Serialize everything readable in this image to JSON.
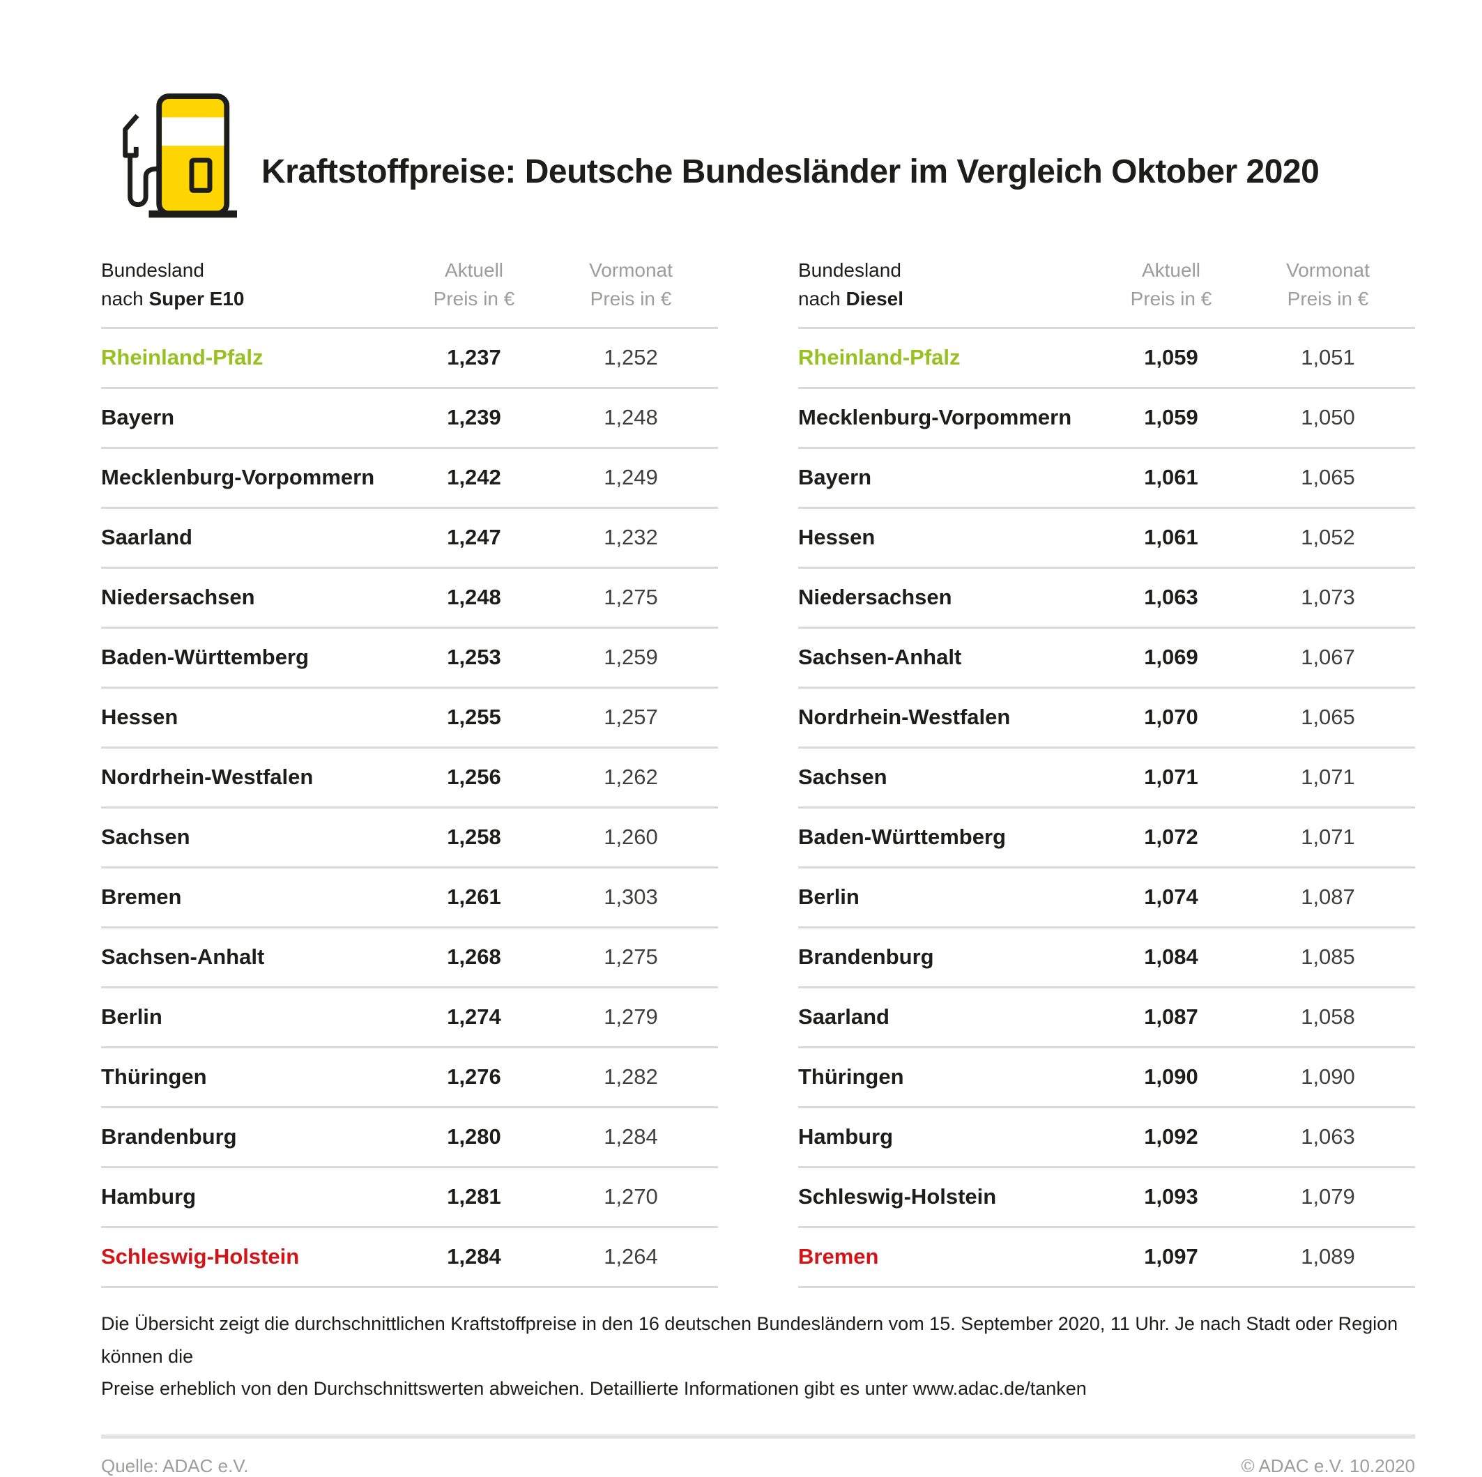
{
  "title": "Kraftstoffpreise: Deutsche Bundesländer im Vergleich Oktober 2020",
  "icon": "fuel-pump-icon",
  "colors": {
    "accent_yellow": "#ffd500",
    "outline_black": "#1d1d1b",
    "highlight_green": "#96c11e",
    "highlight_red": "#d51317",
    "header_gray": "#9d9d9c",
    "divider_gray": "#d9d9d9"
  },
  "tables": [
    {
      "header": {
        "col1_line1": "Bundesland",
        "col1_line2_prefix": "nach ",
        "col1_fuel": "Super E10",
        "col2_line1": "Aktuell",
        "col2_line2": "Preis in €",
        "col3_line1": "Vormonat",
        "col3_line2": "Preis in €"
      },
      "rows": [
        {
          "name": "Rheinland-Pfalz",
          "aktuell": "1,237",
          "vormonat": "1,252",
          "color": "green"
        },
        {
          "name": "Bayern",
          "aktuell": "1,239",
          "vormonat": "1,248",
          "color": "default"
        },
        {
          "name": "Mecklenburg-Vorpommern",
          "aktuell": "1,242",
          "vormonat": "1,249",
          "color": "default"
        },
        {
          "name": "Saarland",
          "aktuell": "1,247",
          "vormonat": "1,232",
          "color": "default"
        },
        {
          "name": "Niedersachsen",
          "aktuell": "1,248",
          "vormonat": "1,275",
          "color": "default"
        },
        {
          "name": "Baden-Württemberg",
          "aktuell": "1,253",
          "vormonat": "1,259",
          "color": "default"
        },
        {
          "name": "Hessen",
          "aktuell": "1,255",
          "vormonat": "1,257",
          "color": "default"
        },
        {
          "name": "Nordrhein-Westfalen",
          "aktuell": "1,256",
          "vormonat": "1,262",
          "color": "default"
        },
        {
          "name": "Sachsen",
          "aktuell": "1,258",
          "vormonat": "1,260",
          "color": "default"
        },
        {
          "name": "Bremen",
          "aktuell": "1,261",
          "vormonat": "1,303",
          "color": "default"
        },
        {
          "name": "Sachsen-Anhalt",
          "aktuell": "1,268",
          "vormonat": "1,275",
          "color": "default"
        },
        {
          "name": "Berlin",
          "aktuell": "1,274",
          "vormonat": "1,279",
          "color": "default"
        },
        {
          "name": "Thüringen",
          "aktuell": "1,276",
          "vormonat": "1,282",
          "color": "default"
        },
        {
          "name": "Brandenburg",
          "aktuell": "1,280",
          "vormonat": "1,284",
          "color": "default"
        },
        {
          "name": "Hamburg",
          "aktuell": "1,281",
          "vormonat": "1,270",
          "color": "default"
        },
        {
          "name": "Schleswig-Holstein",
          "aktuell": "1,284",
          "vormonat": "1,264",
          "color": "red"
        }
      ]
    },
    {
      "header": {
        "col1_line1": "Bundesland",
        "col1_line2_prefix": "nach ",
        "col1_fuel": "Diesel",
        "col2_line1": "Aktuell",
        "col2_line2": "Preis in €",
        "col3_line1": "Vormonat",
        "col3_line2": "Preis in €"
      },
      "rows": [
        {
          "name": "Rheinland-Pfalz",
          "aktuell": "1,059",
          "vormonat": "1,051",
          "color": "green"
        },
        {
          "name": "Mecklenburg-Vorpommern",
          "aktuell": "1,059",
          "vormonat": "1,050",
          "color": "default"
        },
        {
          "name": "Bayern",
          "aktuell": "1,061",
          "vormonat": "1,065",
          "color": "default"
        },
        {
          "name": "Hessen",
          "aktuell": "1,061",
          "vormonat": "1,052",
          "color": "default"
        },
        {
          "name": "Niedersachsen",
          "aktuell": "1,063",
          "vormonat": "1,073",
          "color": "default"
        },
        {
          "name": "Sachsen-Anhalt",
          "aktuell": "1,069",
          "vormonat": "1,067",
          "color": "default"
        },
        {
          "name": "Nordrhein-Westfalen",
          "aktuell": "1,070",
          "vormonat": "1,065",
          "color": "default"
        },
        {
          "name": "Sachsen",
          "aktuell": "1,071",
          "vormonat": "1,071",
          "color": "default"
        },
        {
          "name": "Baden-Württemberg",
          "aktuell": "1,072",
          "vormonat": "1,071",
          "color": "default"
        },
        {
          "name": "Berlin",
          "aktuell": "1,074",
          "vormonat": "1,087",
          "color": "default"
        },
        {
          "name": "Brandenburg",
          "aktuell": "1,084",
          "vormonat": "1,085",
          "color": "default"
        },
        {
          "name": "Saarland",
          "aktuell": "1,087",
          "vormonat": "1,058",
          "color": "default"
        },
        {
          "name": "Thüringen",
          "aktuell": "1,090",
          "vormonat": "1,090",
          "color": "default"
        },
        {
          "name": "Hamburg",
          "aktuell": "1,092",
          "vormonat": "1,063",
          "color": "default"
        },
        {
          "name": "Schleswig-Holstein",
          "aktuell": "1,093",
          "vormonat": "1,079",
          "color": "default"
        },
        {
          "name": "Bremen",
          "aktuell": "1,097",
          "vormonat": "1,089",
          "color": "red"
        }
      ]
    }
  ],
  "chart_data": [
    {
      "type": "table",
      "title": "Bundesland nach Super E10",
      "columns": [
        "Bundesland",
        "Aktuell Preis in €",
        "Vormonat Preis in €"
      ],
      "rows": [
        [
          "Rheinland-Pfalz",
          1.237,
          1.252
        ],
        [
          "Bayern",
          1.239,
          1.248
        ],
        [
          "Mecklenburg-Vorpommern",
          1.242,
          1.249
        ],
        [
          "Saarland",
          1.247,
          1.232
        ],
        [
          "Niedersachsen",
          1.248,
          1.275
        ],
        [
          "Baden-Württemberg",
          1.253,
          1.259
        ],
        [
          "Hessen",
          1.255,
          1.257
        ],
        [
          "Nordrhein-Westfalen",
          1.256,
          1.262
        ],
        [
          "Sachsen",
          1.258,
          1.26
        ],
        [
          "Bremen",
          1.261,
          1.303
        ],
        [
          "Sachsen-Anhalt",
          1.268,
          1.275
        ],
        [
          "Berlin",
          1.274,
          1.279
        ],
        [
          "Thüringen",
          1.276,
          1.282
        ],
        [
          "Brandenburg",
          1.28,
          1.284
        ],
        [
          "Hamburg",
          1.281,
          1.27
        ],
        [
          "Schleswig-Holstein",
          1.284,
          1.264
        ]
      ],
      "highlights": {
        "cheapest": "Rheinland-Pfalz",
        "most_expensive": "Schleswig-Holstein"
      }
    },
    {
      "type": "table",
      "title": "Bundesland nach Diesel",
      "columns": [
        "Bundesland",
        "Aktuell Preis in €",
        "Vormonat Preis in €"
      ],
      "rows": [
        [
          "Rheinland-Pfalz",
          1.059,
          1.051
        ],
        [
          "Mecklenburg-Vorpommern",
          1.059,
          1.05
        ],
        [
          "Bayern",
          1.061,
          1.065
        ],
        [
          "Hessen",
          1.061,
          1.052
        ],
        [
          "Niedersachsen",
          1.063,
          1.073
        ],
        [
          "Sachsen-Anhalt",
          1.069,
          1.067
        ],
        [
          "Nordrhein-Westfalen",
          1.07,
          1.065
        ],
        [
          "Sachsen",
          1.071,
          1.071
        ],
        [
          "Baden-Württemberg",
          1.072,
          1.071
        ],
        [
          "Berlin",
          1.074,
          1.087
        ],
        [
          "Brandenburg",
          1.084,
          1.085
        ],
        [
          "Saarland",
          1.087,
          1.058
        ],
        [
          "Thüringen",
          1.09,
          1.09
        ],
        [
          "Hamburg",
          1.092,
          1.063
        ],
        [
          "Schleswig-Holstein",
          1.093,
          1.079
        ],
        [
          "Bremen",
          1.097,
          1.089
        ]
      ],
      "highlights": {
        "cheapest": "Rheinland-Pfalz",
        "most_expensive": "Bremen"
      }
    }
  ],
  "footnote": {
    "line1": "Die Übersicht zeigt die durchschnittlichen Kraftstoffpreise in den 16 deutschen Bundesländern vom 15. September 2020, 11 Uhr. Je nach Stadt oder Region können die",
    "line2": "Preise erheblich von den Durchschnittswerten abweichen. Detaillierte Informationen gibt es unter www.adac.de/tanken"
  },
  "footer": {
    "source": "Quelle: ADAC e.V.",
    "copyright": "© ADAC e.V. 10.2020"
  }
}
